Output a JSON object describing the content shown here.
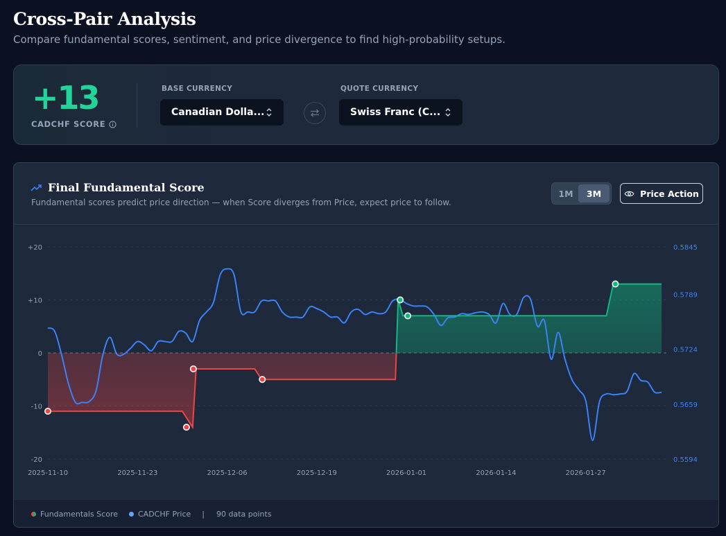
{
  "header": {
    "title": "Cross-Pair Analysis",
    "subtitle": "Compare fundamental scores, sentiment, and price divergence to find high-probability setups."
  },
  "score_card": {
    "score": "+13",
    "score_label": "CADCHF SCORE",
    "base_label": "BASE CURRENCY",
    "base_value": "Canadian Dolla...",
    "quote_label": "QUOTE CURRENCY",
    "quote_value": "Swiss Franc (C...",
    "colors": {
      "score": "#22d39a"
    }
  },
  "chart_panel": {
    "title": "Final Fundamental Score",
    "subtitle": "Fundamental scores predict price direction — when Score diverges from Price, expect price to follow.",
    "range_options": [
      "1M",
      "3M"
    ],
    "selected_range": "3M",
    "price_action_label": "Price Action",
    "icons": [
      "trend-up-icon",
      "eye-icon",
      "info-icon",
      "swap-icon",
      "chevron-updown-icon"
    ]
  },
  "legend": {
    "score_label": "Fundamentals Score",
    "price_label": "CADCHF Price",
    "separator": "|",
    "points_label": "90 data points"
  },
  "chart_data": {
    "type": "line",
    "x_tick_labels": [
      "2025-11-10",
      "2025-11-23",
      "2025-12-06",
      "2025-12-19",
      "2026-01-01",
      "2026-01-14",
      "2026-01-27"
    ],
    "x_tick_days": [
      0,
      13,
      26,
      39,
      52,
      65,
      78
    ],
    "left_axis": {
      "ticks": [
        20,
        10,
        0,
        -10,
        -20
      ],
      "labels": [
        "+20",
        "+10",
        "0",
        "-10",
        "-20"
      ],
      "range": [
        -20,
        20
      ]
    },
    "right_axis": {
      "ticks": [
        0.5845,
        0.5789,
        0.5724,
        0.5659,
        0.5594
      ],
      "labels": [
        "0.5845",
        "0.5789",
        "0.5724",
        "0.5659",
        "0.5594"
      ],
      "range": [
        0.5594,
        0.5845
      ]
    },
    "zero_line": true,
    "grid": true,
    "colors": {
      "positive": "#10b981",
      "negative": "#ef4444",
      "price": "#3b82f6",
      "axis_left": "#94a3b8",
      "axis_right": "#3b82f6"
    },
    "series": [
      {
        "name": "Fundamentals Score",
        "axis": "left",
        "step_points": [
          [
            0,
            -11
          ],
          [
            19.5,
            -11
          ],
          [
            21,
            -14
          ],
          [
            21.5,
            -3
          ],
          [
            30,
            -3
          ],
          [
            31,
            -5
          ],
          [
            50.4,
            -5
          ],
          [
            50.8,
            10
          ],
          [
            51.5,
            7
          ],
          [
            81,
            7
          ],
          [
            82,
            13
          ],
          [
            89,
            13
          ]
        ],
        "markers": [
          [
            0,
            -11
          ],
          [
            20.1,
            -14
          ],
          [
            21.1,
            -3
          ],
          [
            31.1,
            -5
          ],
          [
            51.1,
            10
          ],
          [
            52.2,
            7
          ],
          [
            82.3,
            13
          ]
        ]
      },
      {
        "name": "CADCHF Price",
        "axis": "right",
        "points": [
          [
            0,
            0.5749
          ],
          [
            1,
            0.5745
          ],
          [
            2,
            0.5717
          ],
          [
            3,
            0.5683
          ],
          [
            4,
            0.5661
          ],
          [
            5,
            0.5661
          ],
          [
            6,
            0.5662
          ],
          [
            7,
            0.5675
          ],
          [
            8,
            0.5718
          ],
          [
            9,
            0.5738
          ],
          [
            10,
            0.5718
          ],
          [
            11,
            0.5718
          ],
          [
            12,
            0.5725
          ],
          [
            13,
            0.5733
          ],
          [
            14,
            0.5729
          ],
          [
            15,
            0.5722
          ],
          [
            16,
            0.5733
          ],
          [
            17,
            0.5733
          ],
          [
            18,
            0.5733
          ],
          [
            19,
            0.5745
          ],
          [
            20,
            0.5743
          ],
          [
            21,
            0.5733
          ],
          [
            22,
            0.5758
          ],
          [
            23,
            0.5768
          ],
          [
            24,
            0.5779
          ],
          [
            25,
            0.5812
          ],
          [
            26,
            0.5819
          ],
          [
            27,
            0.5812
          ],
          [
            28,
            0.5768
          ],
          [
            29,
            0.5768
          ],
          [
            30,
            0.5768
          ],
          [
            31,
            0.5781
          ],
          [
            32,
            0.5781
          ],
          [
            33,
            0.5781
          ],
          [
            34,
            0.5768
          ],
          [
            35,
            0.5762
          ],
          [
            36,
            0.5762
          ],
          [
            37,
            0.5762
          ],
          [
            38,
            0.5774
          ],
          [
            39,
            0.5772
          ],
          [
            40,
            0.5768
          ],
          [
            41,
            0.5762
          ],
          [
            42,
            0.5762
          ],
          [
            43,
            0.5755
          ],
          [
            44,
            0.5768
          ],
          [
            45,
            0.5771
          ],
          [
            46,
            0.5765
          ],
          [
            47,
            0.5768
          ],
          [
            48,
            0.5766
          ],
          [
            49,
            0.5768
          ],
          [
            50,
            0.5781
          ],
          [
            51,
            0.5783
          ],
          [
            52,
            0.5778
          ],
          [
            53,
            0.5775
          ],
          [
            54,
            0.5775
          ],
          [
            55,
            0.5774
          ],
          [
            56,
            0.5765
          ],
          [
            57,
            0.5752
          ],
          [
            58,
            0.5761
          ],
          [
            59,
            0.5762
          ],
          [
            60,
            0.5766
          ],
          [
            61,
            0.5765
          ],
          [
            62,
            0.5767
          ],
          [
            63,
            0.5768
          ],
          [
            64,
            0.5765
          ],
          [
            65,
            0.5755
          ],
          [
            66,
            0.5778
          ],
          [
            67,
            0.5765
          ],
          [
            68,
            0.5765
          ],
          [
            69,
            0.5785
          ],
          [
            70,
            0.5783
          ],
          [
            71,
            0.5751
          ],
          [
            72,
            0.5758
          ],
          [
            73,
            0.5712
          ],
          [
            74,
            0.5744
          ],
          [
            75,
            0.5712
          ],
          [
            76,
            0.5688
          ],
          [
            77,
            0.5676
          ],
          [
            78,
            0.5663
          ],
          [
            79,
            0.5616
          ],
          [
            80,
            0.5662
          ],
          [
            81,
            0.5671
          ],
          [
            82,
            0.567
          ],
          [
            83,
            0.5671
          ],
          [
            84,
            0.5674
          ],
          [
            85,
            0.5695
          ],
          [
            86,
            0.5687
          ],
          [
            87,
            0.5685
          ],
          [
            88,
            0.5673
          ],
          [
            89,
            0.5673
          ]
        ]
      }
    ]
  }
}
